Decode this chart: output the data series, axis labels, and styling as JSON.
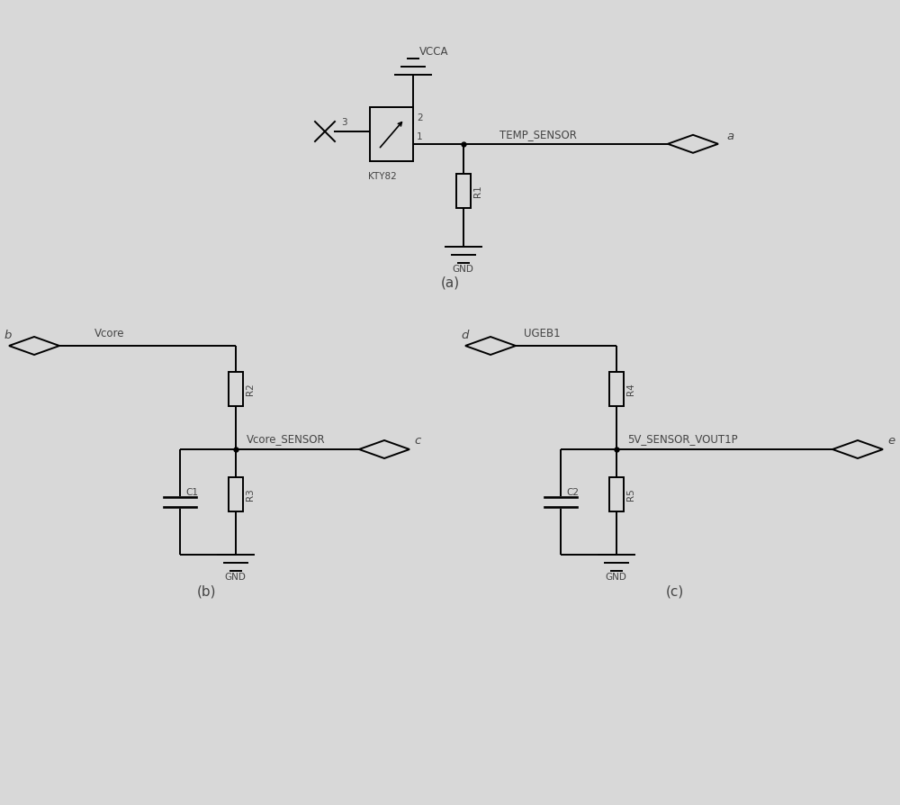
{
  "bg_color": "#d8d8d8",
  "line_color": "#000000",
  "text_color": "#444444",
  "fig_width": 10.0,
  "fig_height": 8.94,
  "label_a": "a",
  "label_b": "b",
  "label_c": "c",
  "label_d": "d",
  "label_e": "e",
  "caption_a": "(a)",
  "caption_b": "(b)",
  "caption_c": "(c)"
}
